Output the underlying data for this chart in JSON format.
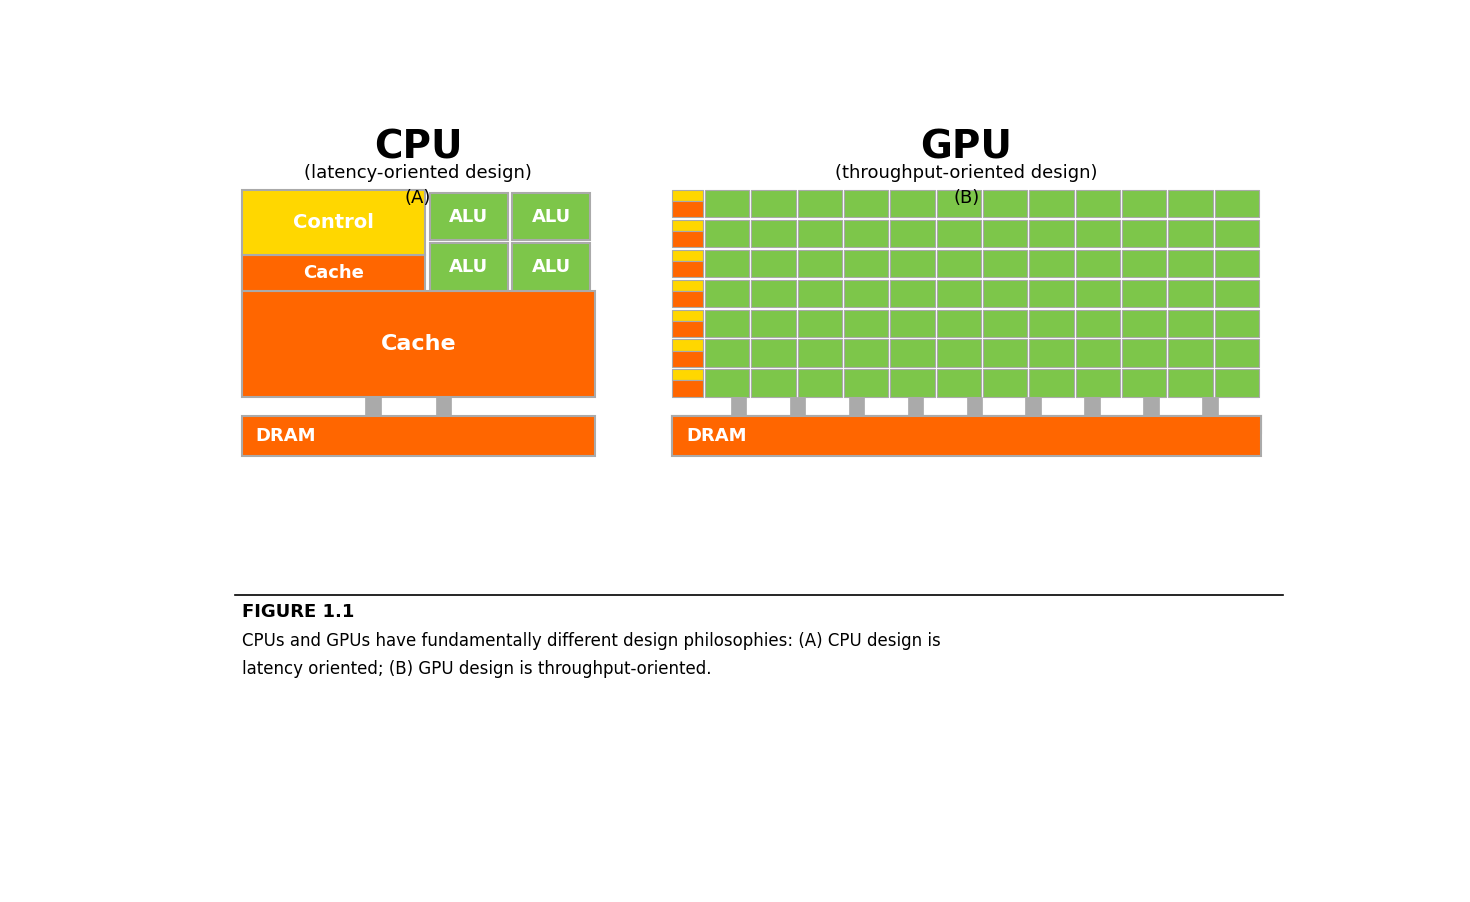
{
  "colors": {
    "yellow": "#FFD700",
    "green": "#7DC64A",
    "orange": "#FF6600",
    "gray": "#AAAAAA",
    "white": "#FFFFFF",
    "black": "#000000",
    "border": "#AAAAAA"
  },
  "cpu_title": "CPU",
  "cpu_subtitle": "(latency-oriented design)",
  "cpu_label": "(A)",
  "gpu_title": "GPU",
  "gpu_subtitle": "(throughput-oriented design)",
  "gpu_label": "(B)",
  "figure_label": "FIGURE 1.1",
  "caption": "CPUs and GPUs have fundamentally different design philosophies: (A) CPU design is\nlatency oriented; (B) GPU design is throughput-oriented.",
  "gpu_rows": 7,
  "gpu_alu_per_row": 12
}
